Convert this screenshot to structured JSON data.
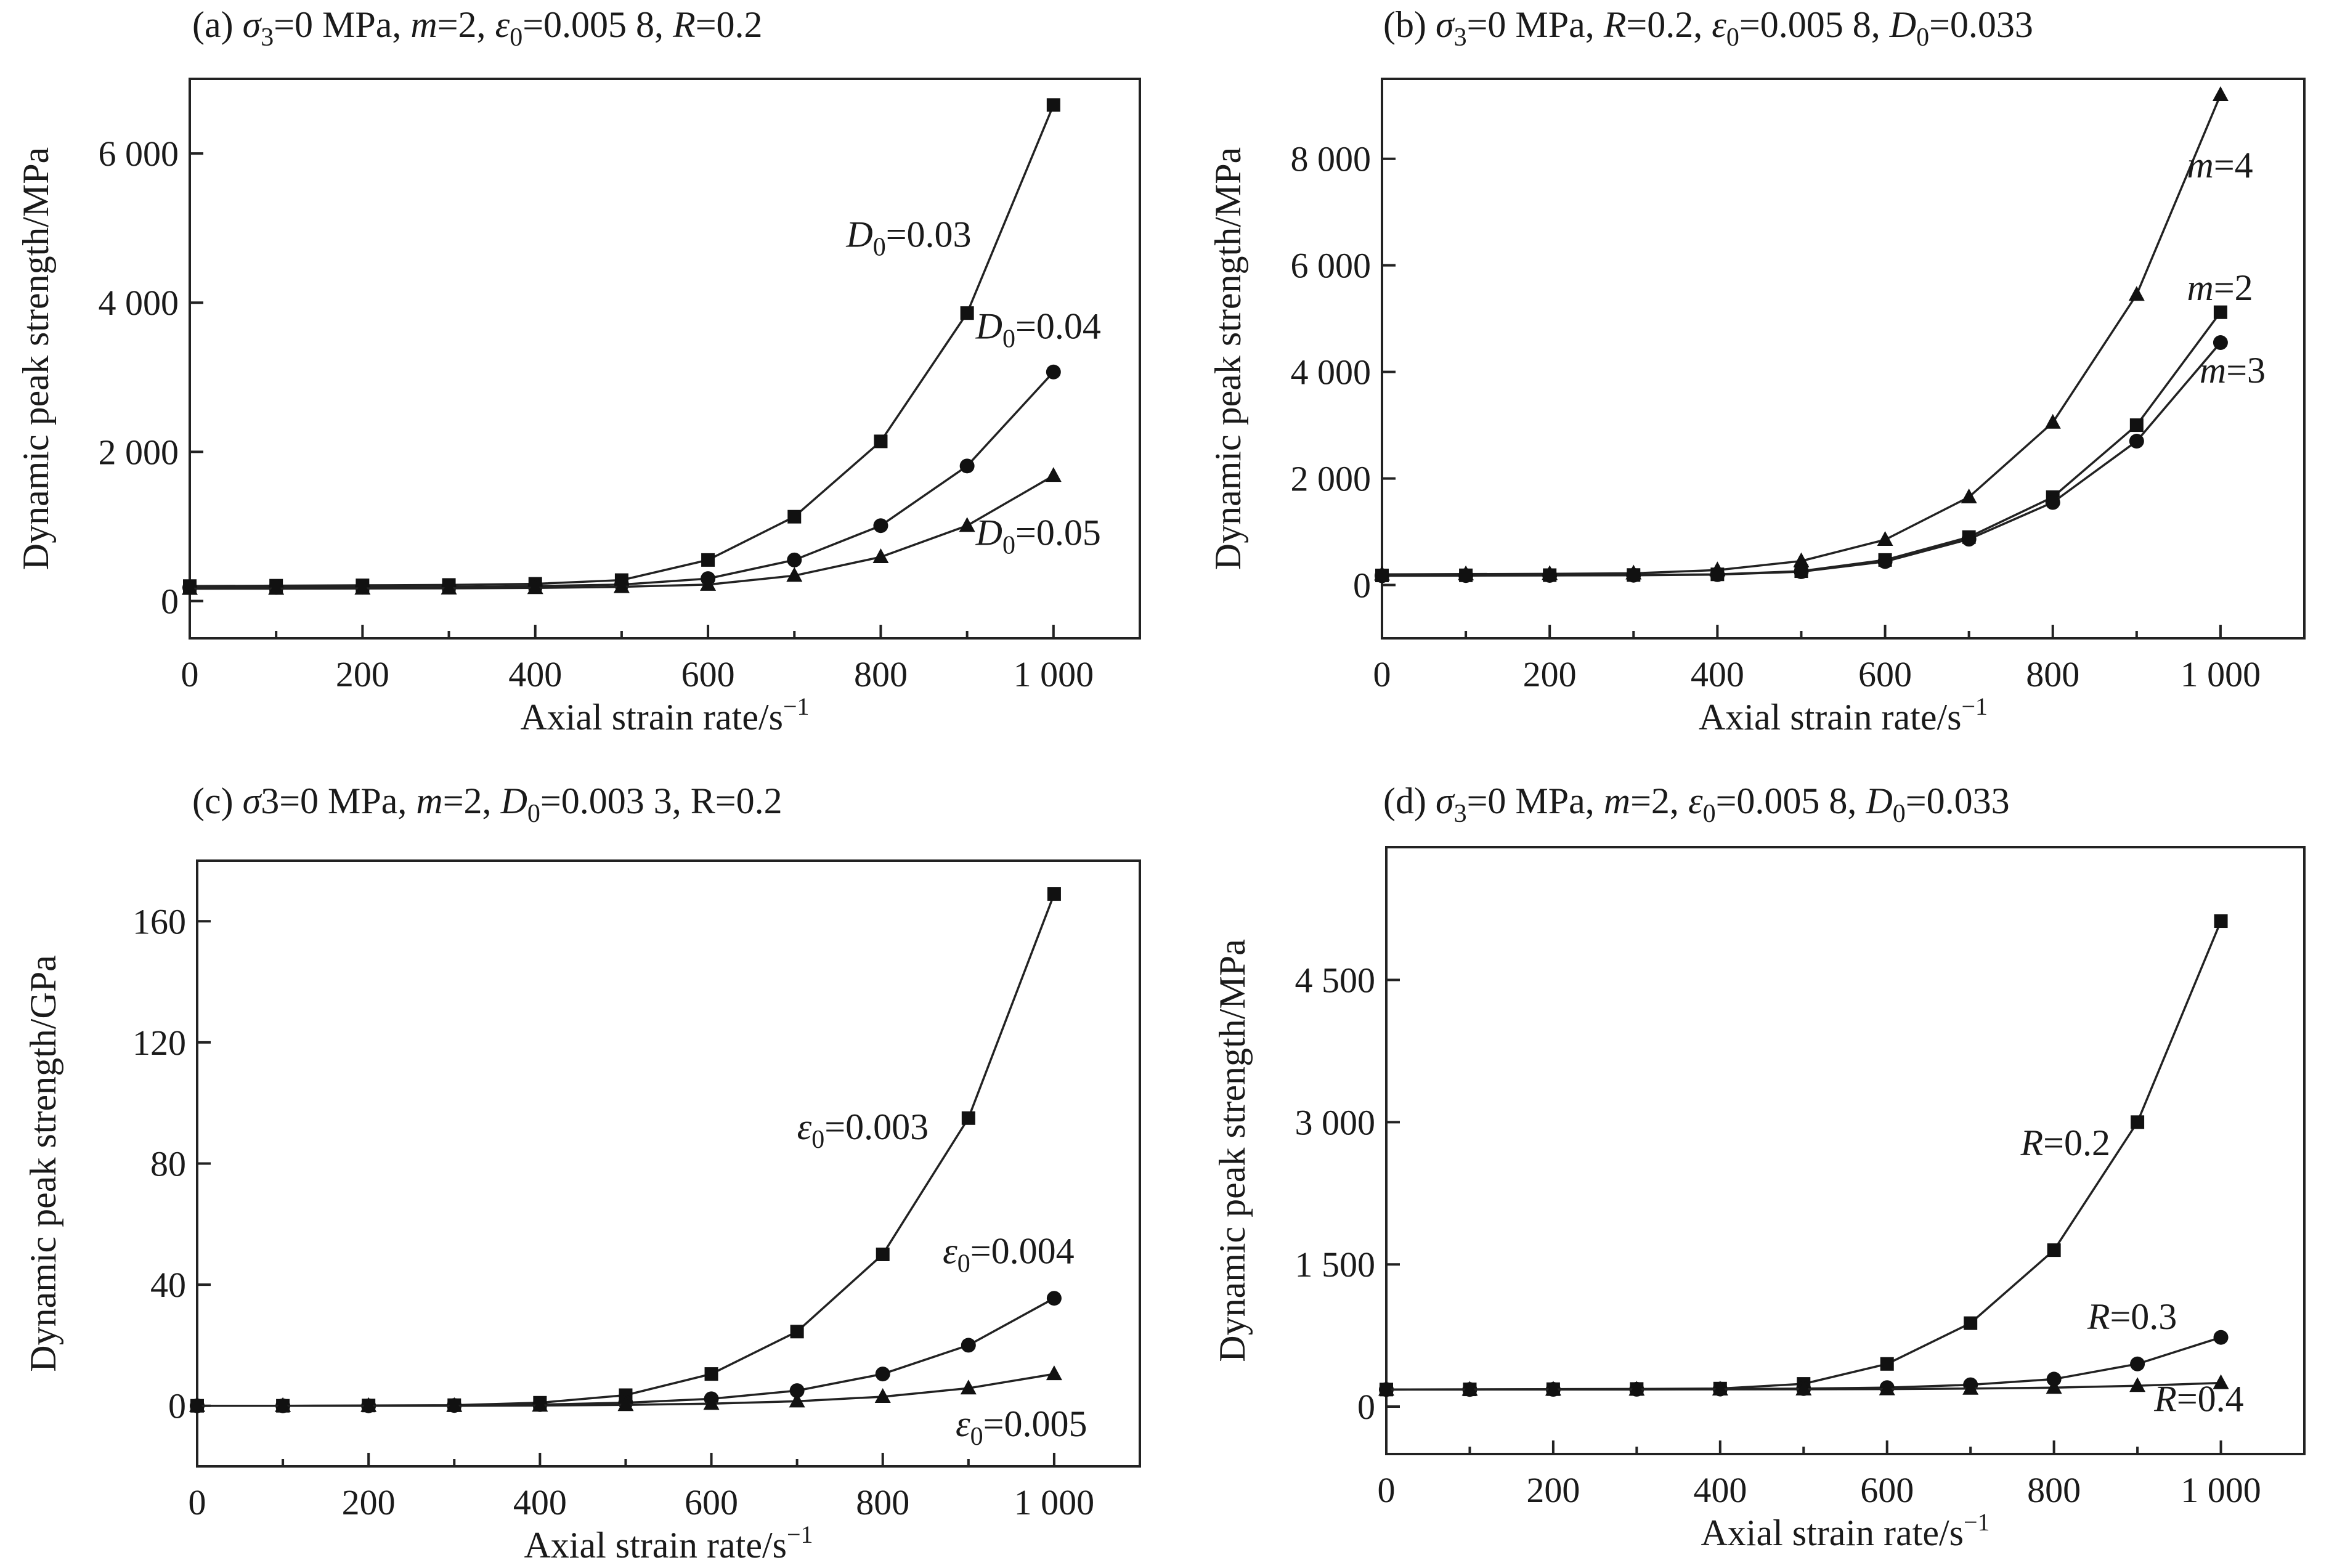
{
  "chart_data": [
    {
      "type": "line",
      "title": "(a) σ3=0 MPa, m=2, ε0=0.005 8, R=0.2",
      "xlabel": "Axial strain rate/s⁻¹",
      "ylabel": "Dynamic peak strength/MPa",
      "xlim": [
        0,
        1100
      ],
      "ylim": [
        -500,
        7000
      ],
      "x_ticks": [
        "0",
        "200",
        "400",
        "600",
        "800",
        "1 000"
      ],
      "x_tick_values": [
        0,
        200,
        400,
        600,
        800,
        1000
      ],
      "y_ticks": [
        "0",
        "2 000",
        "4 000",
        "6 000"
      ],
      "y_tick_values": [
        0,
        2000,
        4000,
        6000
      ],
      "x": [
        0,
        100,
        200,
        300,
        400,
        500,
        600,
        700,
        800,
        900,
        1000
      ],
      "series": [
        {
          "marker": "square",
          "label_index": 0,
          "values": [
            200,
            205,
            210,
            215,
            230,
            280,
            550,
            1130,
            2140,
            3860,
            6650
          ]
        },
        {
          "marker": "circle",
          "label_index": 1,
          "values": [
            180,
            182,
            185,
            188,
            200,
            220,
            300,
            550,
            1010,
            1810,
            3070
          ]
        },
        {
          "marker": "triangle",
          "label_index": 2,
          "values": [
            165,
            166,
            168,
            170,
            175,
            190,
            220,
            340,
            590,
            1010,
            1680
          ]
        }
      ],
      "annotations": [
        {
          "main": "D",
          "sub": "0",
          "rest": "=0.03",
          "italic_main": true,
          "x": 760,
          "y": 4750
        },
        {
          "main": "D",
          "sub": "0",
          "rest": "=0.04",
          "italic_main": true,
          "x": 910,
          "y": 3520
        },
        {
          "main": "D",
          "sub": "0",
          "rest": "=0.05",
          "italic_main": true,
          "x": 910,
          "y": 750
        }
      ]
    },
    {
      "type": "line",
      "title": "(b) σ3=0 MPa, R=0.2, ε0=0.005 8, D0=0.033",
      "xlabel": "Axial strain rate/s⁻¹",
      "ylabel": "Dynamic peak strength/MPa",
      "xlim": [
        0,
        1100
      ],
      "ylim": [
        -1000,
        9500
      ],
      "x_ticks": [
        "0",
        "200",
        "400",
        "600",
        "800",
        "1 000"
      ],
      "x_tick_values": [
        0,
        200,
        400,
        600,
        800,
        1000
      ],
      "y_ticks": [
        "0",
        "2 000",
        "4 000",
        "6 000",
        "8 000"
      ],
      "y_tick_values": [
        0,
        2000,
        4000,
        6000,
        8000
      ],
      "x": [
        0,
        100,
        200,
        300,
        400,
        500,
        600,
        700,
        800,
        900,
        1000
      ],
      "series": [
        {
          "marker": "triangle",
          "label_index": 0,
          "values": [
            200,
            205,
            210,
            220,
            280,
            450,
            850,
            1650,
            3050,
            5450,
            9200
          ]
        },
        {
          "marker": "square",
          "label_index": 1,
          "values": [
            180,
            182,
            185,
            188,
            200,
            260,
            470,
            900,
            1650,
            3000,
            5120
          ]
        },
        {
          "marker": "circle",
          "label_index": 2,
          "values": [
            175,
            177,
            180,
            183,
            195,
            250,
            440,
            860,
            1550,
            2700,
            4550
          ]
        }
      ],
      "annotations": [
        {
          "main": "m",
          "sub": "",
          "rest": "=4",
          "italic_main": true,
          "x": 960,
          "y": 7650
        },
        {
          "main": "m",
          "sub": "",
          "rest": "=2",
          "italic_main": true,
          "x": 960,
          "y": 5350
        },
        {
          "main": "m",
          "sub": "",
          "rest": "=3",
          "italic_main": true,
          "x": 975,
          "y": 3800
        }
      ]
    },
    {
      "type": "line",
      "title": "(c) σ3=0 MPa, m=2, D0=0.003 3, R=0.2",
      "xlabel": "Axial strain rate/s⁻¹",
      "ylabel": "Dynamic peak strength/GPa",
      "xlim": [
        0,
        1100
      ],
      "ylim": [
        -20,
        180
      ],
      "x_ticks": [
        "0",
        "200",
        "400",
        "600",
        "800",
        "1 000"
      ],
      "x_tick_values": [
        0,
        200,
        400,
        600,
        800,
        1000
      ],
      "y_ticks": [
        "0",
        "40",
        "80",
        "120",
        "160"
      ],
      "y_tick_values": [
        0,
        40,
        80,
        120,
        160
      ],
      "x": [
        0,
        100,
        200,
        300,
        400,
        500,
        600,
        700,
        800,
        900,
        1000
      ],
      "series": [
        {
          "marker": "square",
          "label_index": 0,
          "values": [
            0,
            0,
            0.1,
            0.2,
            1,
            3.5,
            10.5,
            24.5,
            50,
            95,
            169
          ]
        },
        {
          "marker": "circle",
          "label_index": 1,
          "values": [
            0,
            0,
            0,
            0.1,
            0.4,
            1.0,
            2.3,
            5,
            10.5,
            20,
            35.5
          ]
        },
        {
          "marker": "triangle",
          "label_index": 2,
          "values": [
            0,
            0,
            0,
            0,
            0.1,
            0.3,
            0.7,
            1.5,
            3.0,
            5.8,
            10.5
          ]
        }
      ],
      "annotations": [
        {
          "main": "ε",
          "sub": "0",
          "rest": "=0.003",
          "italic_main": true,
          "x": 700,
          "y": 88
        },
        {
          "main": "ε",
          "sub": "0",
          "rest": "=0.004",
          "italic_main": true,
          "x": 870,
          "y": 47
        },
        {
          "main": "ε",
          "sub": "0",
          "rest": "=0.005",
          "italic_main": true,
          "x": 885,
          "y": -10
        }
      ]
    },
    {
      "type": "line",
      "title": "(d) σ3=0 MPa, m=2, ε0=0.005 8, D0=0.033",
      "xlabel": "Axial strain rate/s⁻¹",
      "ylabel": "Dynamic peak strength/MPa",
      "xlim": [
        0,
        1100
      ],
      "ylim": [
        -500,
        5900
      ],
      "x_ticks": [
        "0",
        "200",
        "400",
        "600",
        "800",
        "1 000"
      ],
      "x_tick_values": [
        0,
        200,
        400,
        600,
        800,
        1000
      ],
      "y_ticks": [
        "0",
        "1 500",
        "3 000",
        "4 500"
      ],
      "y_tick_values": [
        0,
        1500,
        3000,
        4500
      ],
      "x": [
        0,
        100,
        200,
        300,
        400,
        500,
        600,
        700,
        800,
        900,
        1000
      ],
      "series": [
        {
          "marker": "square",
          "label_index": 0,
          "values": [
            180,
            182,
            184,
            186,
            190,
            240,
            450,
            880,
            1650,
            3000,
            5120
          ]
        },
        {
          "marker": "circle",
          "label_index": 1,
          "values": [
            180,
            181,
            182,
            183,
            185,
            190,
            200,
            230,
            290,
            450,
            730
          ]
        },
        {
          "marker": "triangle",
          "label_index": 2,
          "values": [
            180,
            180,
            181,
            181,
            182,
            183,
            185,
            190,
            200,
            220,
            250
          ]
        }
      ],
      "annotations": [
        {
          "main": "R",
          "sub": "",
          "rest": "=0.2",
          "italic_main": true,
          "x": 760,
          "y": 2650
        },
        {
          "main": "R",
          "sub": "",
          "rest": "=0.3",
          "italic_main": true,
          "x": 840,
          "y": 820
        },
        {
          "main": "R",
          "sub": "",
          "rest": "=0.4",
          "italic_main": true,
          "x": 920,
          "y": -50
        }
      ]
    }
  ],
  "panel_titles": [
    [
      {
        "t": "(a) "
      },
      {
        "t": "σ",
        "i": true
      },
      {
        "t": "3",
        "sub": true
      },
      {
        "t": "=0 MPa, "
      },
      {
        "t": "m",
        "i": true
      },
      {
        "t": "=2, "
      },
      {
        "t": "ε",
        "i": true
      },
      {
        "t": "0",
        "sub": true
      },
      {
        "t": "=0.005 8, "
      },
      {
        "t": "R",
        "i": true
      },
      {
        "t": "=0.2"
      }
    ],
    [
      {
        "t": "(b) "
      },
      {
        "t": "σ",
        "i": true
      },
      {
        "t": "3",
        "sub": true
      },
      {
        "t": "=0 MPa, "
      },
      {
        "t": "R",
        "i": true
      },
      {
        "t": "=0.2, "
      },
      {
        "t": "ε",
        "i": true
      },
      {
        "t": "0",
        "sub": true
      },
      {
        "t": "=0.005 8, "
      },
      {
        "t": "D",
        "i": true
      },
      {
        "t": "0",
        "sub": true
      },
      {
        "t": "=0.033"
      }
    ],
    [
      {
        "t": "(c) "
      },
      {
        "t": "σ",
        "i": true
      },
      {
        "t": "3=0 MPa, "
      },
      {
        "t": "m",
        "i": true
      },
      {
        "t": "=2, "
      },
      {
        "t": "D",
        "i": true
      },
      {
        "t": "0",
        "sub": true
      },
      {
        "t": "=0.003 3, R=0.2"
      }
    ],
    [
      {
        "t": "(d) "
      },
      {
        "t": "σ",
        "i": true
      },
      {
        "t": "3",
        "sub": true
      },
      {
        "t": "=0 MPa, "
      },
      {
        "t": "m",
        "i": true
      },
      {
        "t": "=2, "
      },
      {
        "t": "ε",
        "i": true
      },
      {
        "t": "0",
        "sub": true
      },
      {
        "t": "=0.005 8, "
      },
      {
        "t": "D",
        "i": true
      },
      {
        "t": "0",
        "sub": true
      },
      {
        "t": "=0.033"
      }
    ]
  ]
}
